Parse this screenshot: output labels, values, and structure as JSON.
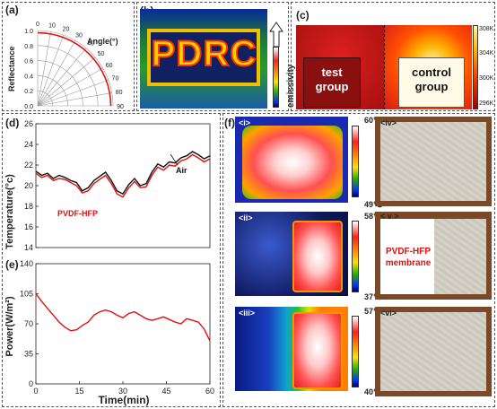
{
  "panels": {
    "a": "(a)",
    "b": "(b)",
    "c": "(c)",
    "d": "(d)",
    "e": "(e)",
    "f": "(f)"
  },
  "panel_a": {
    "angle_label": "Angle(°)",
    "ylabel": "Reflectance",
    "radial_ticks": [
      "1.0",
      "0.8",
      "0.6",
      "0.4",
      "0.2",
      "0.0"
    ],
    "angle_ticks": [
      "90",
      "80",
      "70",
      "60",
      "50",
      "40",
      "30",
      "20",
      "10",
      "0"
    ]
  },
  "panel_b": {
    "letters": [
      "P",
      "D",
      "R",
      "C"
    ],
    "colorbar_label": "emissivity"
  },
  "panel_c": {
    "left_label": [
      "test",
      "group"
    ],
    "right_label": [
      "control",
      "group"
    ],
    "scale_ticks": [
      "308K",
      "304K",
      "300K",
      "296K"
    ]
  },
  "panel_f": {
    "sub_labels": [
      "<i>",
      "<ii>",
      "<iii>",
      "<iv>",
      "< v >",
      "<vi>"
    ],
    "scales": [
      {
        "top": "60℃",
        "bottom": "49℃"
      },
      {
        "top": "58℃",
        "bottom": "37℃"
      },
      {
        "top": "57℃",
        "bottom": "40℃"
      }
    ],
    "membrane_label": [
      "PVDF-HFP",
      "membrane"
    ]
  },
  "colors": {
    "pvdf_line": "#e01010",
    "air_line": "#111111",
    "power_line": "#e01010",
    "membrane_text": "#e01010"
  },
  "chart_data": [
    {
      "type": "line",
      "panel": "d",
      "xlabel": "",
      "ylabel": "Temperature(°c)",
      "xlim": [
        0,
        60
      ],
      "ylim": [
        14,
        26
      ],
      "yticks": [
        14,
        16,
        18,
        20,
        22,
        24,
        26
      ],
      "x": [
        0,
        2,
        4,
        6,
        8,
        10,
        12,
        14,
        16,
        18,
        20,
        22,
        24,
        26,
        28,
        30,
        32,
        34,
        36,
        38,
        40,
        42,
        44,
        46,
        48,
        50,
        52,
        54,
        56,
        58,
        60
      ],
      "series": [
        {
          "name": "PVDF-HFP",
          "values": [
            21.2,
            20.8,
            21.0,
            20.5,
            20.7,
            20.6,
            20.3,
            20.0,
            19.3,
            19.5,
            20.2,
            20.6,
            21.0,
            20.2,
            19.2,
            18.9,
            19.8,
            20.4,
            19.8,
            19.9,
            21.0,
            21.8,
            21.5,
            22.0,
            21.9,
            22.4,
            22.6,
            23.0,
            22.7,
            22.3,
            22.6
          ]
        },
        {
          "name": "Air",
          "values": [
            21.4,
            21.0,
            21.2,
            20.7,
            21.0,
            20.8,
            20.5,
            20.3,
            19.5,
            19.8,
            20.5,
            20.9,
            21.3,
            20.5,
            19.5,
            19.2,
            20.1,
            20.7,
            20.0,
            20.2,
            21.3,
            22.1,
            21.8,
            22.3,
            22.2,
            22.7,
            22.9,
            23.3,
            23.0,
            22.6,
            22.9
          ]
        }
      ],
      "annotations": [
        "PVDF-HFP",
        "Air"
      ]
    },
    {
      "type": "line",
      "panel": "e",
      "xlabel": "Time(min)",
      "ylabel": "Power(W/m²)",
      "xlim": [
        0,
        60
      ],
      "ylim": [
        0,
        140
      ],
      "xticks": [
        0,
        15,
        30,
        45,
        60
      ],
      "yticks": [
        0,
        35,
        70,
        105,
        140
      ],
      "x": [
        0,
        2,
        4,
        6,
        8,
        10,
        12,
        14,
        16,
        18,
        20,
        22,
        24,
        26,
        28,
        30,
        32,
        34,
        36,
        38,
        40,
        42,
        44,
        46,
        48,
        50,
        52,
        54,
        56,
        58,
        60
      ],
      "series": [
        {
          "name": "",
          "values": [
            105,
            96,
            88,
            80,
            72,
            66,
            62,
            63,
            68,
            72,
            80,
            84,
            86,
            84,
            80,
            77,
            82,
            84,
            80,
            76,
            74,
            76,
            78,
            75,
            72,
            70,
            76,
            74,
            72,
            64,
            50
          ]
        }
      ]
    }
  ]
}
